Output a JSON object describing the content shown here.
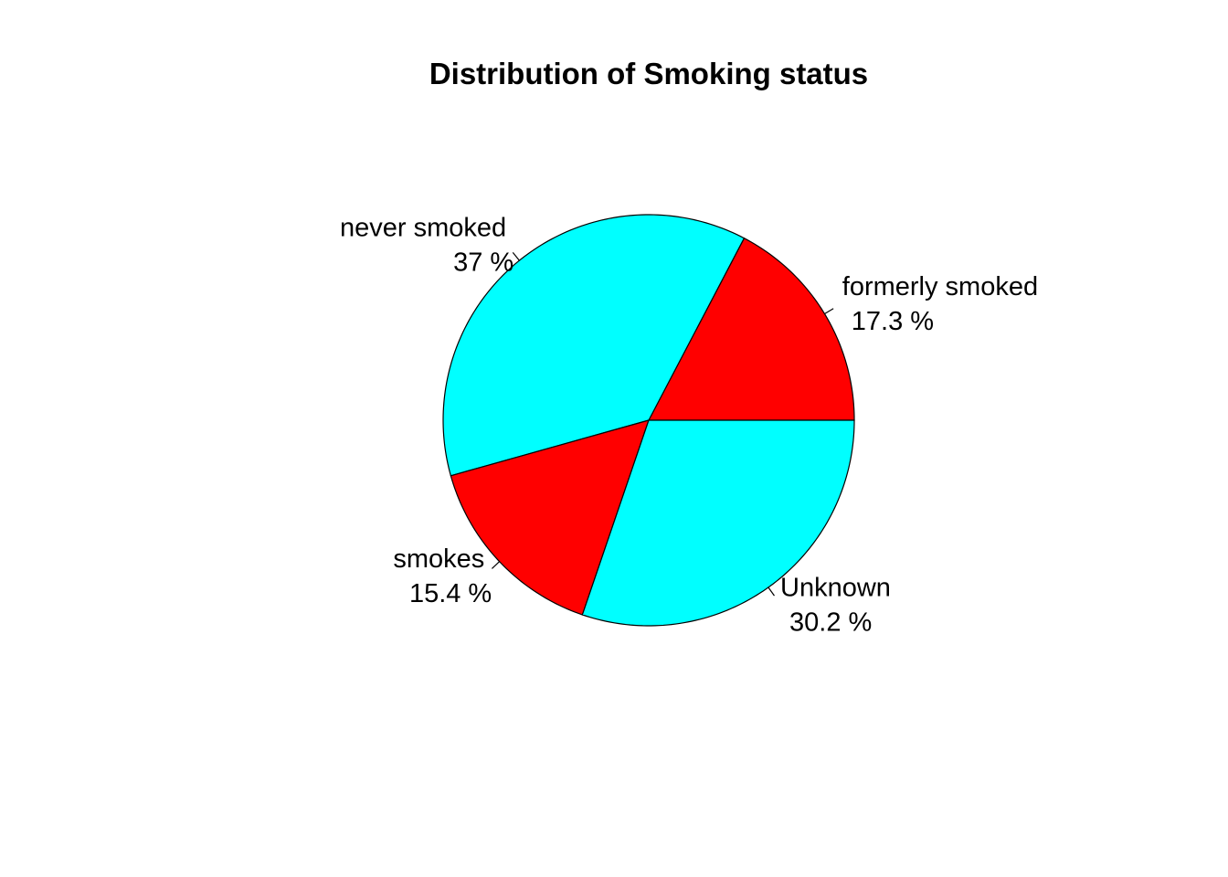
{
  "chart_data": {
    "type": "pie",
    "title": "Distribution of Smoking status",
    "direction": "counterclockwise",
    "start_angle_deg": 0,
    "slices": [
      {
        "category": "formerly smoked",
        "percent_label": "17.3 %",
        "value": 17.3,
        "color": "#ff0000"
      },
      {
        "category": "never smoked",
        "percent_label": "37 %",
        "value": 37.0,
        "color": "#00ffff"
      },
      {
        "category": "smokes",
        "percent_label": "15.4 %",
        "value": 15.4,
        "color": "#ff0000"
      },
      {
        "category": "Unknown",
        "percent_label": "30.2 %",
        "value": 30.2,
        "color": "#00ffff"
      }
    ]
  }
}
